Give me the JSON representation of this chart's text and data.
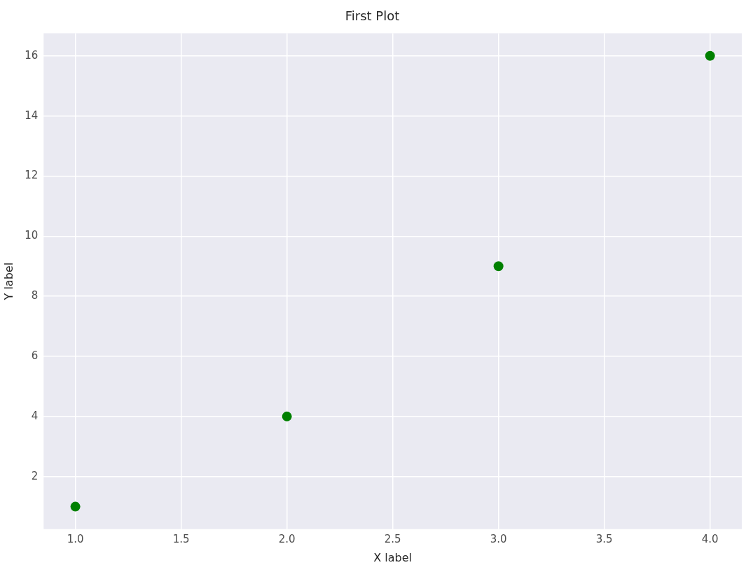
{
  "chart_data": {
    "type": "scatter",
    "title": "First Plot",
    "xlabel": "X label",
    "ylabel": "Y label",
    "x": [
      1,
      2,
      3,
      4
    ],
    "series": [
      {
        "color": "#008000",
        "values": [
          1,
          4,
          9,
          16
        ]
      }
    ],
    "xlim": [
      0.85,
      4.15
    ],
    "ylim": [
      0.25,
      16.75
    ],
    "xticks": [
      {
        "value": 1,
        "label": "1.0"
      },
      {
        "value": 1.5,
        "label": "1.5"
      },
      {
        "value": 2,
        "label": "2.0"
      },
      {
        "value": 2.5,
        "label": "2.5"
      },
      {
        "value": 3,
        "label": "3.0"
      },
      {
        "value": 3.5,
        "label": "3.5"
      },
      {
        "value": 4,
        "label": "4.0"
      }
    ],
    "yticks": [
      2,
      4,
      6,
      8,
      10,
      12,
      14,
      16
    ],
    "grid": true,
    "legend": false,
    "marker": "circle"
  }
}
